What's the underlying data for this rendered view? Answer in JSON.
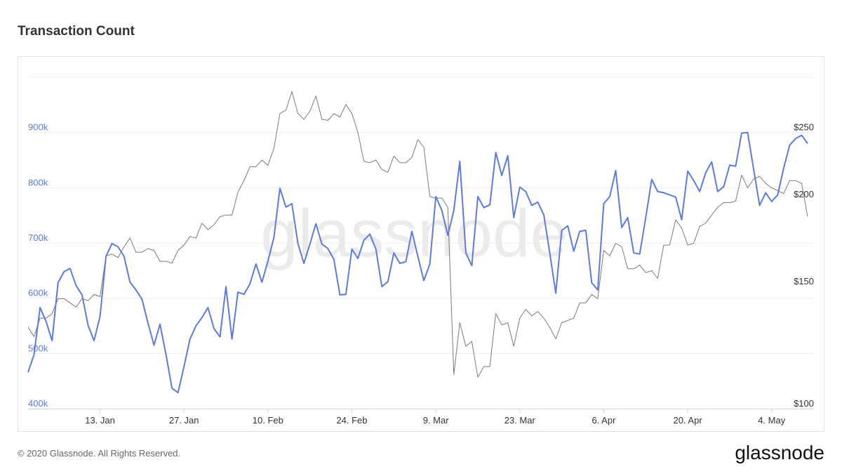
{
  "chart_data": {
    "type": "line",
    "title": "Transaction Count",
    "footer": "© 2020 Glassnode. All Rights Reserved.",
    "logo": "glassnode",
    "watermark": "glassnode",
    "x": [
      "1. Jan",
      "2. Jan",
      "3. Jan",
      "4. Jan",
      "5. Jan",
      "6. Jan",
      "7. Jan",
      "8. Jan",
      "9. Jan",
      "10. Jan",
      "11. Jan",
      "12. Jan",
      "13. Jan",
      "14. Jan",
      "15. Jan",
      "16. Jan",
      "17. Jan",
      "18. Jan",
      "19. Jan",
      "20. Jan",
      "21. Jan",
      "22. Jan",
      "23. Jan",
      "24. Jan",
      "25. Jan",
      "26. Jan",
      "27. Jan",
      "28. Jan",
      "29. Jan",
      "30. Jan",
      "31. Jan",
      "1. Feb",
      "2. Feb",
      "3. Feb",
      "4. Feb",
      "5. Feb",
      "6. Feb",
      "7. Feb",
      "8. Feb",
      "9. Feb",
      "10. Feb",
      "11. Feb",
      "12. Feb",
      "13. Feb",
      "14. Feb",
      "15. Feb",
      "16. Feb",
      "17. Feb",
      "18. Feb",
      "19. Feb",
      "20. Feb",
      "21. Feb",
      "22. Feb",
      "23. Feb",
      "24. Feb",
      "25. Feb",
      "26. Feb",
      "27. Feb",
      "28. Feb",
      "29. Feb",
      "1. Mar",
      "2. Mar",
      "3. Mar",
      "4. Mar",
      "5. Mar",
      "6. Mar",
      "7. Mar",
      "8. Mar",
      "9. Mar",
      "10. Mar",
      "11. Mar",
      "12. Mar",
      "13. Mar",
      "14. Mar",
      "15. Mar",
      "16. Mar",
      "17. Mar",
      "18. Mar",
      "19. Mar",
      "20. Mar",
      "21. Mar",
      "22. Mar",
      "23. Mar",
      "24. Mar",
      "25. Mar",
      "26. Mar",
      "27. Mar",
      "28. Mar",
      "29. Mar",
      "30. Mar",
      "31. Mar",
      "1. Apr",
      "2. Apr",
      "3. Apr",
      "4. Apr",
      "5. Apr",
      "6. Apr",
      "7. Apr",
      "8. Apr",
      "9. Apr",
      "10. Apr",
      "11. Apr",
      "12. Apr",
      "13. Apr",
      "14. Apr",
      "15. Apr",
      "16. Apr",
      "17. Apr",
      "18. Apr",
      "19. Apr",
      "20. Apr",
      "21. Apr",
      "22. Apr",
      "23. Apr",
      "24. Apr",
      "25. Apr",
      "26. Apr",
      "27. Apr",
      "28. Apr",
      "29. Apr",
      "30. Apr",
      "1. May",
      "2. May",
      "3. May",
      "4. May",
      "5. May",
      "6. May",
      "7. May",
      "8. May",
      "9. May",
      "10. May"
    ],
    "xticks": [
      "13. Jan",
      "27. Jan",
      "10. Feb",
      "24. Feb",
      "9. Mar",
      "23. Mar",
      "6. Apr",
      "20. Apr",
      "4. May"
    ],
    "series": [
      {
        "color": "#5b7be0",
        "axis": "y",
        "values": [
          466000,
          498000,
          583000,
          558000,
          523000,
          628000,
          648000,
          654000,
          623000,
          606000,
          551000,
          523000,
          567000,
          676000,
          699000,
          693000,
          676000,
          629000,
          615000,
          598000,
          555000,
          515000,
          553000,
          498000,
          437000,
          429000,
          476000,
          526000,
          550000,
          565000,
          583000,
          545000,
          530000,
          621000,
          526000,
          611000,
          607000,
          626000,
          662000,
          629000,
          667000,
          710000,
          799000,
          765000,
          771000,
          699000,
          663000,
          698000,
          735000,
          698000,
          690000,
          670000,
          606000,
          607000,
          689000,
          672000,
          705000,
          716000,
          689000,
          621000,
          630000,
          682000,
          663000,
          666000,
          721000,
          676000,
          632000,
          662000,
          784000,
          759000,
          714000,
          759000,
          848000,
          682000,
          659000,
          784000,
          764000,
          769000,
          864000,
          822000,
          858000,
          746000,
          801000,
          793000,
          768000,
          774000,
          751000,
          682000,
          609000,
          723000,
          731000,
          685000,
          721000,
          723000,
          628000,
          615000,
          771000,
          784000,
          831000,
          728000,
          746000,
          682000,
          680000,
          746000,
          815000,
          793000,
          791000,
          787000,
          783000,
          742000,
          830000,
          813000,
          793000,
          827000,
          847000,
          793000,
          802000,
          841000,
          839000,
          899000,
          900000,
          833000,
          768000,
          791000,
          775000,
          787000,
          835000,
          877000,
          889000,
          895000,
          880000
        ]
      },
      {
        "color": "#7a7a7a",
        "axis": "y2",
        "values": [
          131,
          127,
          135,
          135,
          137,
          144,
          144,
          142,
          140,
          144,
          143,
          146,
          145,
          166,
          167,
          165,
          171,
          176,
          168,
          168,
          170,
          169,
          163,
          163,
          162,
          169,
          172,
          177,
          176,
          185,
          181,
          184,
          189,
          190,
          190,
          205,
          213,
          223,
          223,
          228,
          224,
          237,
          266,
          269,
          286,
          266,
          261,
          268,
          282,
          261,
          260,
          266,
          263,
          274,
          266,
          250,
          227,
          226,
          228,
          221,
          219,
          231,
          226,
          226,
          230,
          244,
          238,
          202,
          201,
          201,
          195,
          112,
          133,
          123,
          125,
          111,
          115,
          115,
          137,
          132,
          133,
          123,
          135,
          139,
          136,
          138,
          135,
          131,
          126,
          133,
          134,
          135,
          142,
          142,
          146,
          144,
          169,
          166,
          173,
          171,
          159,
          159,
          161,
          157,
          158,
          154,
          172,
          172,
          187,
          182,
          172,
          173,
          183,
          185,
          190,
          195,
          198,
          198,
          199,
          217,
          208,
          214,
          216,
          211,
          208,
          206,
          204,
          213,
          213,
          211,
          189
        ]
      }
    ],
    "ylim": [
      400000,
      1000000
    ],
    "yticks": [
      {
        "value": 400000,
        "label": "400k"
      },
      {
        "value": 500000,
        "label": "500k"
      },
      {
        "value": 600000,
        "label": "600k"
      },
      {
        "value": 700000,
        "label": "700k"
      },
      {
        "value": 800000,
        "label": "800k"
      },
      {
        "value": 900000,
        "label": "900k"
      }
    ],
    "y2lim": [
      100,
      300
    ],
    "y2scale": "log",
    "y2ticks": [
      {
        "value": 100,
        "label": "$100"
      },
      {
        "value": 150,
        "label": "$150"
      },
      {
        "value": 200,
        "label": "$200"
      },
      {
        "value": 250,
        "label": "$250"
      }
    ],
    "grid": true
  }
}
